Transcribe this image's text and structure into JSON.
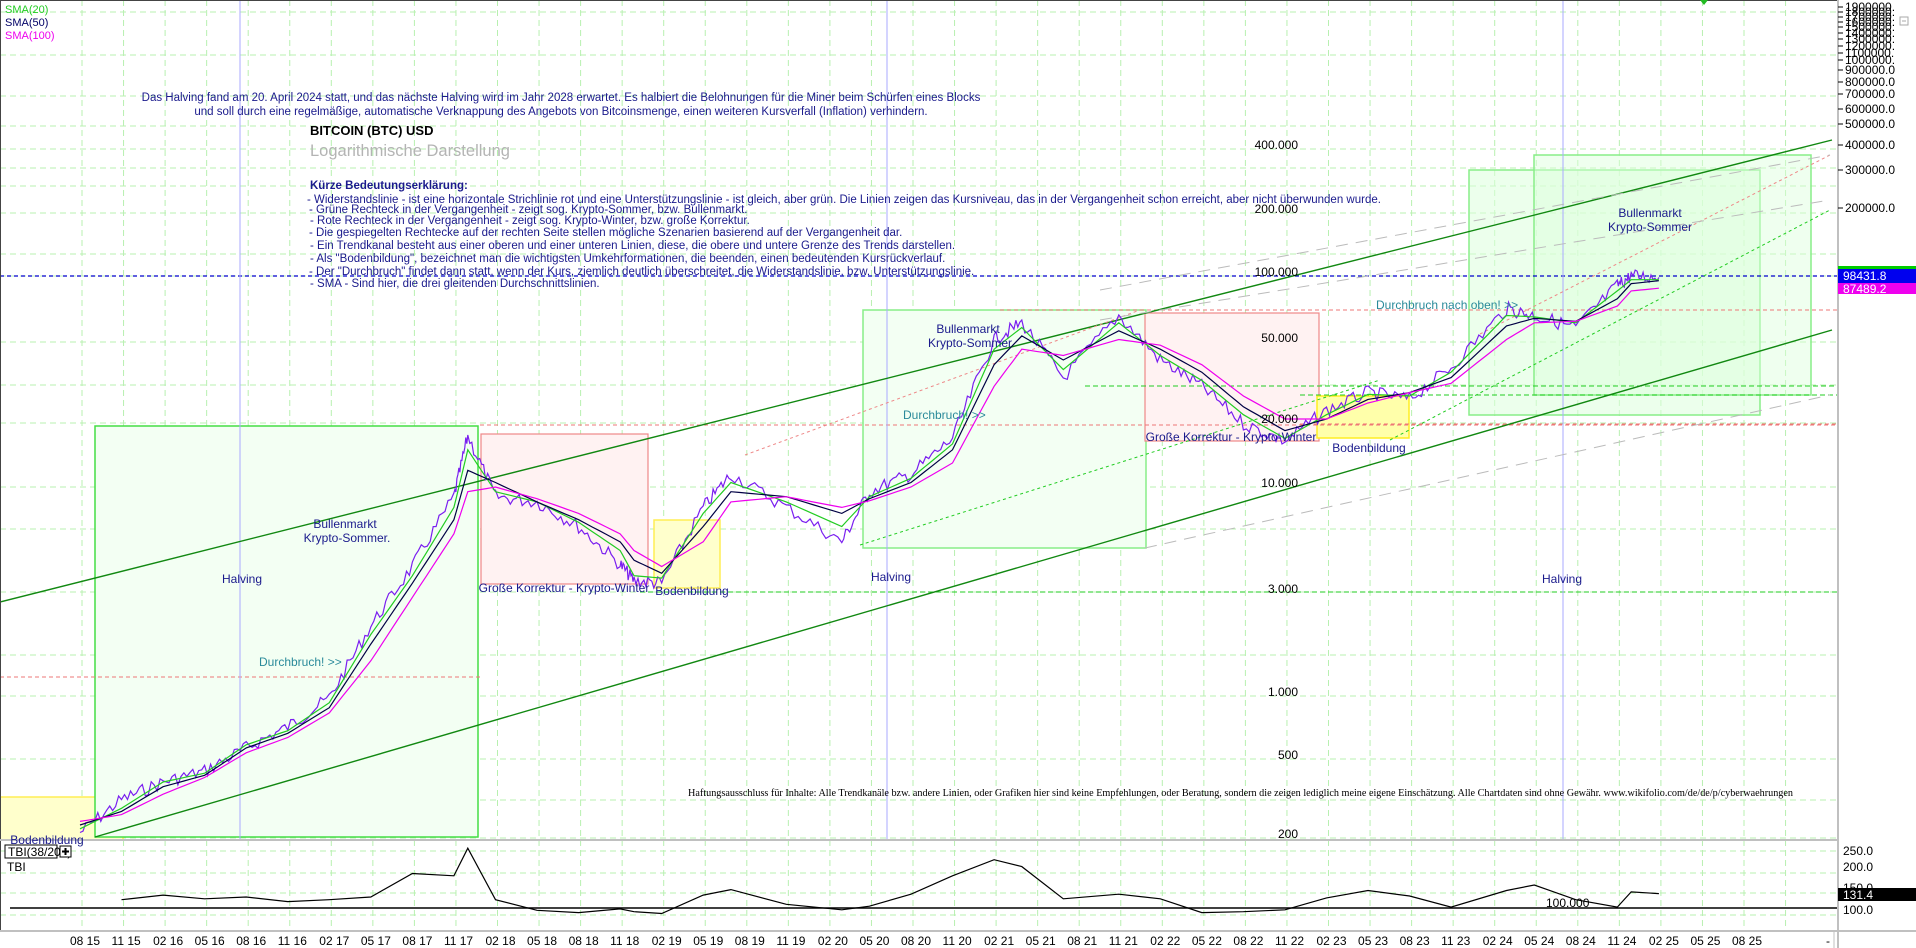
{
  "window": {
    "collapse_icon": "minus-box-icon"
  },
  "legend": [
    {
      "label": "SMA(20)",
      "color": "#22cc22"
    },
    {
      "label": "SMA(50)",
      "color": "#000066"
    },
    {
      "label": "SMA(100)",
      "color": "#ee00ee"
    }
  ],
  "intro": {
    "line1": "Das Halving fand am 20. April 2024 statt, und das nächste Halving wird im Jahr 2028 erwartet. Es halbiert die Belohnungen für die Miner beim Schürfen eines Blocks",
    "line2": "und soll durch eine regelmäßige, automatische Verknappung des Angebots von Bitcoinsmenge, einen weiteren Kursverfall (Inflation) verhindern."
  },
  "title": {
    "main": "BITCOIN (BTC) USD",
    "sub": "Logarithmische Darstellung"
  },
  "explanation": {
    "heading": "Kürze Bedeutungserklärung:",
    "lines": [
      "- Widerstandslinie - ist eine horizontale Strichlinie rot und eine Unterstützungslinie - ist gleich, aber grün. Die Linien zeigen das Kursniveau, das in der Vergangenheit schon erreicht, aber nicht überwunden wurde.",
      "- Grüne Rechteck in der Vergangenheit - zeigt sog. Krypto-Sommer, bzw. Bullenmarkt.",
      "- Rote Rechteck in der Vergangenheit - zeigt sog. Krypto-Winter, bzw. große Korrektur.",
      "- Die gespiegelten Rechtecke auf der rechten Seite stellen mögliche Szenarien basierend auf der Vergangenheit dar.",
      "- Ein Trendkanal besteht aus einer oberen und einer unteren Linien, diese, die obere und untere Grenze des Trends darstellen.",
      "- Als \"Bodenbildung\", bezeichnet man die wichtigsten Umkehrformationen, die beenden, einen bedeutenden Kursrückverlauf.",
      "- Der \"Durchbruch\" findet dann statt, wenn der Kurs, ziemlich deutlich überschreitet, die Widerstandslinie, bzw. Unterstützungslinie.",
      "- SMA - Sind hier, die drei gleitenden Durchschnittslinien."
    ]
  },
  "annotations": {
    "halving_1": "Halving",
    "halving_2": "Halving",
    "halving_3": "Halving",
    "bull_1_a": "Bullenmarkt",
    "bull_1_b": "Krypto-Sommer.",
    "bull_2_a": "Bullenmarkt",
    "bull_2_b": "Krypto-Sommer",
    "bull_3_a": "Bullenmarkt",
    "bull_3_b": "Krypto-Sommer",
    "corr_1": "Große Korrektur - Krypto-Winter",
    "corr_2": "Große Korrektur - Krypto-Winter",
    "bottom_0": "Bodenbildung",
    "bottom_1": "Bodenbildung",
    "bottom_2": "Bodenbildung",
    "breakout_1": "Durchbruch! >>",
    "breakout_2": "Durchbruch! >>",
    "breakout_3": "Durchbruch nach oben! >>"
  },
  "inner_price_labels": [
    "400.000",
    "200.000",
    "100.000",
    "50.000",
    "20.000",
    "10.000",
    "3.000",
    "1.000",
    "500",
    "200"
  ],
  "disclaimer": "Haftungsausschluss für Inhalte: Alle Trendkanäle bzw. andere Linien, oder Grafiken hier sind keine Empfehlungen, oder Beratung, sondern die zeigen lediglich meine eigene Einschätzung. Alle Chartdaten sind ohne Gewähr.  www.wikifolio.com/de/de/p/cyberwaehrungen",
  "price_axis": {
    "labels": [
      "1900000.",
      "1800000.",
      "1700000.",
      "1600000.",
      "1500000.",
      "1400000.",
      "1300000.",
      "1200000.",
      "1100000.",
      "1000000.",
      "900000.0",
      "800000.0",
      "700000.0",
      "600000.0",
      "500000.0",
      "400000.0",
      "300000.0",
      "200000.0"
    ],
    "last_price": "98431.8",
    "last_price_color": "#0000ee",
    "sma_value": "87489.2",
    "sma_value_color": "#ee00ee"
  },
  "indicator": {
    "name": "TBI(38/200)",
    "label": "TBI",
    "add_icon": "plus-box-icon",
    "axis_labels": [
      "250.0",
      "200.0",
      "150.0",
      "100.0"
    ],
    "current_value": "131.4",
    "baseline_label": "100.000"
  },
  "time_axis": {
    "labels": [
      "08 15",
      "11 15",
      "02 16",
      "05 16",
      "08 16",
      "11 16",
      "02 17",
      "05 17",
      "08 17",
      "11 17",
      "02 18",
      "05 18",
      "08 18",
      "11 18",
      "02 19",
      "05 19",
      "08 19",
      "11 19",
      "02 20",
      "05 20",
      "08 20",
      "11 20",
      "02 21",
      "05 21",
      "08 21",
      "11 21",
      "02 22",
      "05 22",
      "08 22",
      "11 22",
      "02 23",
      "05 23",
      "08 23",
      "11 23",
      "02 24",
      "05 24",
      "08 24",
      "11 24",
      "02 25",
      "05 25",
      "08 25",
      "-"
    ]
  },
  "chart_data": {
    "type": "line",
    "title": "BITCOIN (BTC) USD",
    "subtitle": "Logarithmische Darstellung",
    "yscale": "log",
    "ylim": [
      200,
      1900000
    ],
    "xlabel": "",
    "ylabel": "USD",
    "x": [
      "2015-08",
      "2015-11",
      "2016-02",
      "2016-05",
      "2016-08",
      "2016-11",
      "2017-02",
      "2017-05",
      "2017-08",
      "2017-11",
      "2017-12",
      "2018-02",
      "2018-05",
      "2018-08",
      "2018-11",
      "2018-12",
      "2019-02",
      "2019-05",
      "2019-07",
      "2019-11",
      "2020-03",
      "2020-05",
      "2020-08",
      "2020-11",
      "2021-02",
      "2021-04",
      "2021-07",
      "2021-11",
      "2022-02",
      "2022-05",
      "2022-08",
      "2022-11",
      "2023-02",
      "2023-05",
      "2023-08",
      "2023-11",
      "2024-03",
      "2024-05",
      "2024-08",
      "2024-11",
      "2024-12",
      "2025-02"
    ],
    "series": [
      {
        "name": "BTC Close",
        "values": [
          230,
          330,
          400,
          450,
          580,
          730,
          1000,
          2200,
          4200,
          9000,
          17500,
          9000,
          8500,
          6500,
          4300,
          3600,
          3500,
          8000,
          11500,
          8000,
          5500,
          9500,
          11500,
          17000,
          50000,
          60000,
          33000,
          65000,
          40000,
          30000,
          20000,
          16500,
          23000,
          28000,
          26000,
          37000,
          70000,
          65000,
          57000,
          90000,
          100000,
          98431
        ]
      },
      {
        "name": "SMA(20)",
        "values": [
          240,
          300,
          400,
          440,
          600,
          700,
          950,
          2000,
          3800,
          8000,
          15000,
          9500,
          8500,
          6800,
          5000,
          3800,
          3700,
          7500,
          10500,
          8500,
          6500,
          9000,
          11000,
          16000,
          45000,
          57000,
          36000,
          60000,
          42000,
          32000,
          22000,
          17000,
          22000,
          27500,
          27000,
          35000,
          65000,
          64000,
          60000,
          85000,
          96000,
          96000
        ]
      },
      {
        "name": "SMA(50)",
        "values": [
          250,
          290,
          380,
          430,
          580,
          680,
          900,
          1800,
          3500,
          7000,
          12000,
          10500,
          8500,
          7000,
          5500,
          4500,
          3900,
          6500,
          9500,
          9000,
          7500,
          8800,
          10500,
          15000,
          38000,
          52000,
          40000,
          55000,
          45000,
          35000,
          24000,
          18500,
          21000,
          26000,
          28000,
          33000,
          58000,
          63000,
          61000,
          78000,
          92000,
          95000
        ]
      },
      {
        "name": "SMA(100)",
        "values": [
          260,
          280,
          350,
          420,
          550,
          650,
          850,
          1500,
          3000,
          6000,
          9500,
          10000,
          8800,
          7500,
          6000,
          5000,
          4200,
          5500,
          8500,
          9000,
          8000,
          8600,
          10000,
          13000,
          30000,
          45000,
          42000,
          50000,
          47000,
          38000,
          27000,
          21000,
          21000,
          25000,
          28000,
          31000,
          50000,
          60000,
          61000,
          72000,
          85000,
          87489
        ]
      },
      {
        "name": "TBI(38/200)",
        "values": [
          null,
          118,
          128,
          120,
          124,
          114,
          118,
          124,
          175,
          170,
          230,
          118,
          95,
          90,
          98,
          92,
          88,
          128,
          140,
          108,
          96,
          104,
          130,
          170,
          205,
          190,
          120,
          130,
          120,
          90,
          92,
          96,
          122,
          138,
          126,
          102,
          138,
          150,
          118,
          102,
          135,
          131.4
        ]
      }
    ],
    "reference_lines": {
      "resistance_red": [
        200000,
        65000,
        20000,
        1200
      ],
      "support_green": [
        32000,
        12000,
        3000
      ],
      "last_price": 98431.8,
      "tbi_baseline": 100
    },
    "halving_dates": [
      "2016-07",
      "2020-05",
      "2024-04"
    ],
    "legend": [
      "SMA(20)",
      "SMA(50)",
      "SMA(100)"
    ],
    "indicator_ylim": [
      50,
      260
    ],
    "grid": true,
    "legend_position": "top-left"
  }
}
